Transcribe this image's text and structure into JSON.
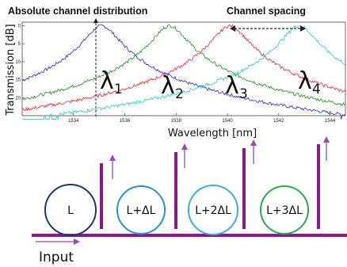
{
  "titles": {
    "left": "Absolute channel distribution",
    "right": "Channel spacing"
  },
  "colors": {
    "series": [
      "#3a3ad8",
      "#2e9a2e",
      "#f03838",
      "#38d0d0"
    ],
    "bus": "#8a1a8a",
    "arrow": "#9a4ab0",
    "rings": [
      "#1a3a6a",
      "#2a90d0",
      "#3aaee0",
      "#2aaa4a"
    ]
  },
  "chart_data": {
    "type": "line",
    "xlabel": "Wavelength [nm]",
    "ylabel": "Transmission [dB]",
    "xlim": [
      1532.0,
      1544.6
    ],
    "ylim": [
      -25,
      1
    ],
    "xticks": [
      1534,
      1536,
      1538,
      1540,
      1542,
      1544
    ],
    "yticks": [
      0,
      -5,
      -10,
      -15,
      -20
    ],
    "ytick_labels": [
      "0",
      "5",
      "10",
      "15",
      "20"
    ],
    "grid": false,
    "series": [
      {
        "peak": 1535.1,
        "color": "#3a3ad8"
      },
      {
        "peak": 1537.75,
        "color": "#2e9a2e"
      },
      {
        "peak": 1540.1,
        "color": "#f03838"
      },
      {
        "peak": 1542.8,
        "color": "#38d0d0"
      }
    ],
    "annotations": [
      {
        "text": "λ",
        "sub": "1"
      },
      {
        "text": "λ",
        "sub": "2"
      },
      {
        "text": "λ",
        "sub": "3"
      },
      {
        "text": "λ",
        "sub": "4"
      }
    ]
  },
  "rings": [
    {
      "label": "L"
    },
    {
      "label": "L+ΔL"
    },
    {
      "label": "L+2ΔL"
    },
    {
      "label": "L+3ΔL"
    }
  ],
  "input_label": "Input"
}
